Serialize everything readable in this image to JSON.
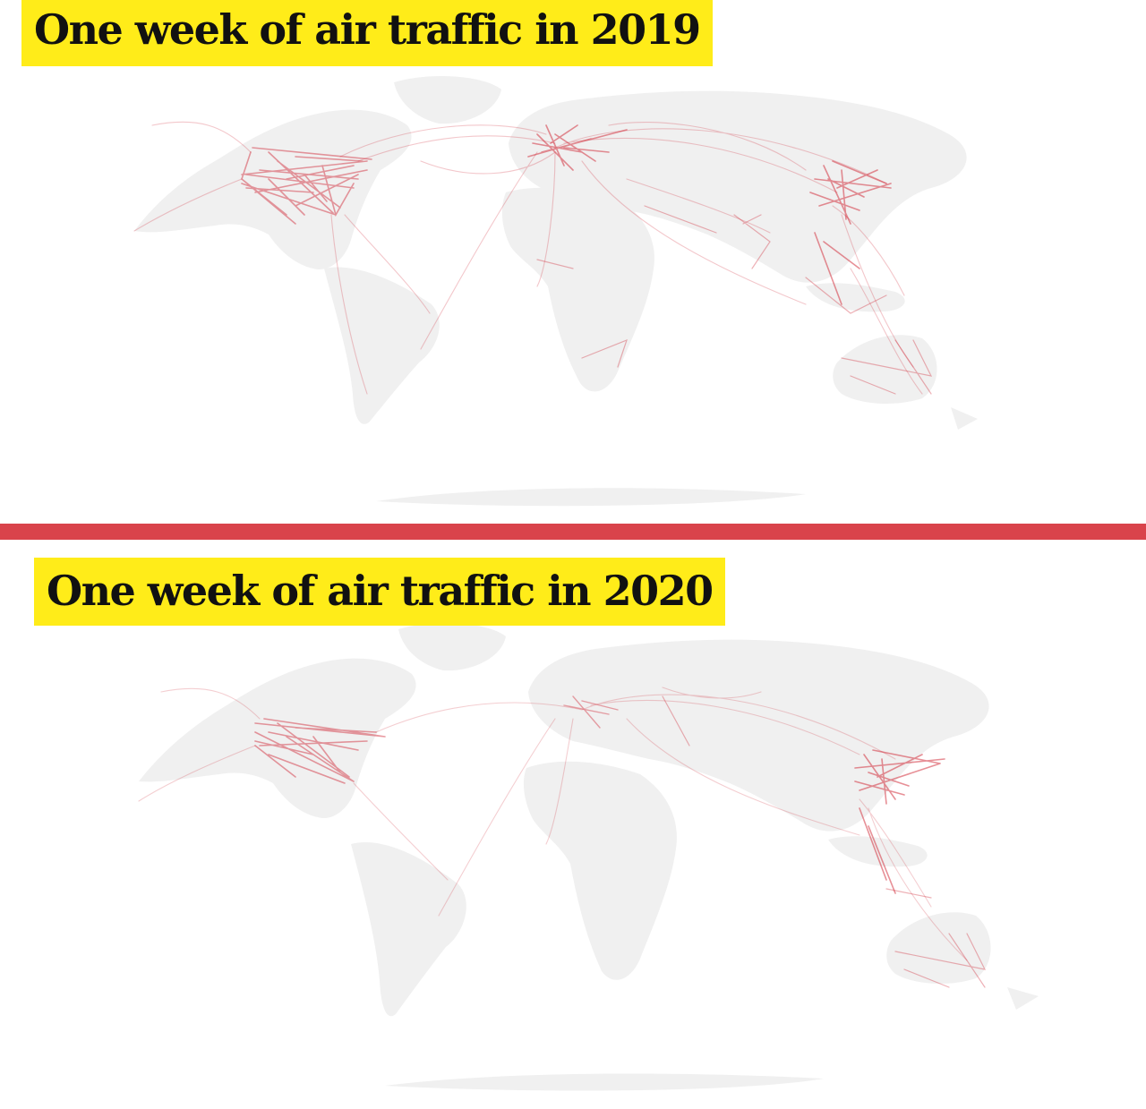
{
  "panels": [
    {
      "title": "One week of air traffic in 2019"
    },
    {
      "title": "One week of air traffic in 2020"
    }
  ],
  "colors": {
    "title_background": "#ffec19",
    "title_text": "#111111",
    "divider": "#d9434b",
    "land": "#f0f0f0",
    "route": "#cf1f2e"
  }
}
